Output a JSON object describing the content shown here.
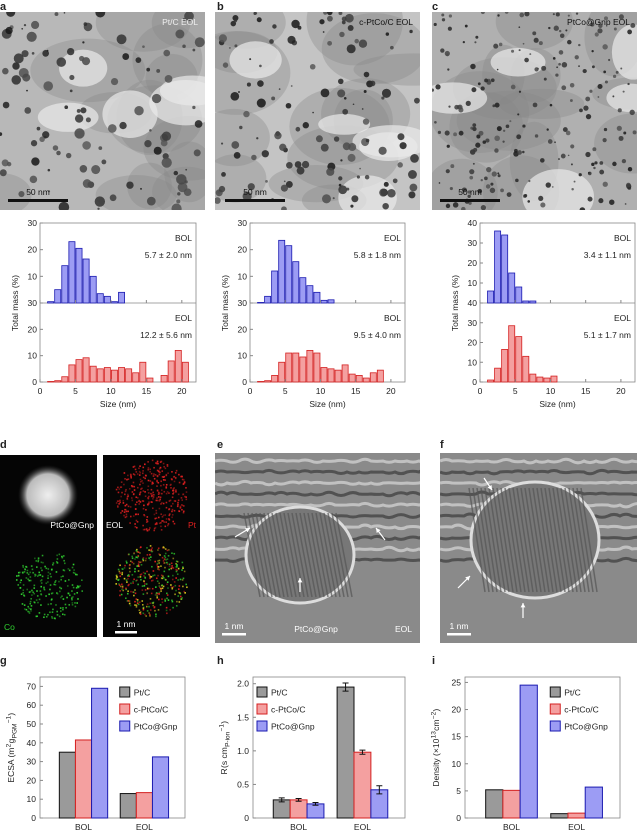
{
  "panels": {
    "a": {
      "letter": "a",
      "image_label": "Pt/C EOL",
      "scale_bar": "50 nm"
    },
    "b": {
      "letter": "b",
      "image_label": "c-PtCo/C EOL",
      "scale_bar": "50 nm"
    },
    "c": {
      "letter": "c",
      "image_label": "PtCo@Gnp EOL",
      "scale_bar": "50 nm"
    },
    "d": {
      "letter": "d",
      "label_haadf": "PtCo@Gnp",
      "label_eol": "EOL",
      "label_pt": "Pt",
      "label_co": "Co",
      "scale_bar": "1 nm",
      "pt_color": "#e02020",
      "co_color": "#30d030"
    },
    "e": {
      "letter": "e",
      "label_sample": "PtCo@Gnp",
      "label_eol": "EOL",
      "scale_bar": "1 nm"
    },
    "f": {
      "letter": "f",
      "scale_bar": "1 nm"
    },
    "g": {
      "letter": "g"
    },
    "h": {
      "letter": "h"
    },
    "i": {
      "letter": "i"
    }
  },
  "colors": {
    "blue_fill": "#9c9cf4",
    "blue_edge": "#1a1ab0",
    "red_fill": "#f4a0a0",
    "red_edge": "#d42020",
    "gray_fill": "#9a9a9a",
    "gray_edge": "#111111"
  },
  "chart_data": [
    {
      "type": "bar",
      "panel": "a",
      "xlabel": "Size (nm)",
      "ylabel": "Total mass (%)",
      "xlim": [
        0,
        22
      ],
      "xticks": [
        0,
        5,
        10,
        15,
        20
      ],
      "ylim": [
        0,
        30
      ],
      "yticks": [
        0,
        10,
        20,
        30
      ],
      "bin_width_nm": 1,
      "series": [
        {
          "name": "BOL",
          "annotation": "5.7 ± 2.0 nm",
          "bin_start": [
            1,
            2,
            3,
            4,
            5,
            6,
            7,
            8,
            9,
            10,
            11
          ],
          "values": [
            0.5,
            5,
            14,
            23,
            20.5,
            16.5,
            10,
            3.5,
            2.5,
            0.5,
            4
          ]
        },
        {
          "name": "EOL",
          "annotation": "12.2 ± 5.6 nm",
          "bin_start": [
            1,
            2,
            3,
            4,
            5,
            6,
            7,
            8,
            9,
            10,
            11,
            12,
            13,
            14,
            15,
            16,
            17,
            18,
            19,
            20
          ],
          "values": [
            0.2,
            0.5,
            2,
            6.5,
            8.5,
            9.2,
            6,
            5,
            5.5,
            4.5,
            5.5,
            5,
            3.5,
            7.5,
            1.5,
            0,
            2.5,
            8,
            12,
            7.5
          ]
        }
      ]
    },
    {
      "type": "bar",
      "panel": "b",
      "xlabel": "Size (nm)",
      "ylabel": "Total mass (%)",
      "xlim": [
        0,
        22
      ],
      "xticks": [
        0,
        5,
        10,
        15,
        20
      ],
      "ylim": [
        0,
        30
      ],
      "yticks": [
        0,
        10,
        20,
        30
      ],
      "bin_width_nm": 1,
      "series": [
        {
          "name": "EOL",
          "annotation": "5.8 ± 1.8 nm",
          "bin_start": [
            1,
            2,
            3,
            4,
            5,
            6,
            7,
            8,
            9,
            10,
            11
          ],
          "values": [
            0.2,
            2.5,
            12,
            23.5,
            21.5,
            15.5,
            9.5,
            6.5,
            4,
            1,
            1.2
          ]
        },
        {
          "name": "BOL",
          "annotation": "9.5 ± 4.0 nm",
          "bin_start": [
            1,
            2,
            3,
            4,
            5,
            6,
            7,
            8,
            9,
            10,
            11,
            12,
            13,
            14,
            15,
            16,
            17,
            18
          ],
          "values": [
            0.2,
            0.5,
            2.5,
            7.5,
            11,
            11,
            9.5,
            12,
            11,
            5.5,
            5,
            4.5,
            6.5,
            3,
            2.5,
            1.5,
            3.5,
            4.5
          ]
        }
      ]
    },
    {
      "type": "bar",
      "panel": "c",
      "xlabel": "Size (nm)",
      "ylabel": "Total mass (%)",
      "xlim": [
        0,
        22
      ],
      "xticks": [
        0,
        5,
        10,
        15,
        20
      ],
      "ylim": [
        0,
        40
      ],
      "yticks": [
        0,
        10,
        20,
        30,
        40
      ],
      "bin_width_nm": 1,
      "series": [
        {
          "name": "BOL",
          "annotation": "3.4 ± 1.1 nm",
          "bin_start": [
            1,
            2,
            3,
            4,
            5,
            6,
            7
          ],
          "values": [
            6,
            36,
            34,
            15,
            8,
            1,
            1
          ]
        },
        {
          "name": "EOL",
          "annotation": "5.1 ± 1.7 nm",
          "bin_start": [
            1,
            2,
            3,
            4,
            5,
            6,
            7,
            8,
            9,
            10
          ],
          "values": [
            1,
            7,
            16.5,
            28.5,
            23,
            13,
            4,
            2.5,
            2,
            3
          ]
        }
      ]
    },
    {
      "type": "bar",
      "panel": "g",
      "ylabel": {
        "main": "ECSA (m",
        "sup1": "2",
        "mid": " g",
        "sub": "PGM",
        "sup2": "−1",
        "end": ")"
      },
      "categories": [
        "BOL",
        "EOL"
      ],
      "ylim": [
        0,
        75
      ],
      "yticks": [
        0,
        10,
        20,
        30,
        40,
        50,
        60,
        70
      ],
      "legend": "top-right",
      "series": [
        {
          "name": "Pt/C",
          "values": [
            35,
            13
          ]
        },
        {
          "name": "c-PtCo/C",
          "values": [
            41.5,
            13.5
          ]
        },
        {
          "name": "PtCo@Gnp",
          "values": [
            69,
            32.5
          ]
        }
      ]
    },
    {
      "type": "bar",
      "panel": "h",
      "ylabel": {
        "main": "R",
        "sub": "P-ion",
        "mid": " (s cm",
        "sup2": "−1",
        "end": ")"
      },
      "categories": [
        "BOL",
        "EOL"
      ],
      "ylim": [
        0,
        2.1
      ],
      "yticks": [
        0,
        0.5,
        1.0,
        1.5,
        2.0
      ],
      "yticklabels": [
        "0",
        "0.5",
        "1.0",
        "1.5",
        "2.0"
      ],
      "legend": "top-left",
      "series": [
        {
          "name": "Pt/C",
          "values": [
            0.27,
            1.95
          ],
          "errors": [
            0.03,
            0.06
          ]
        },
        {
          "name": "c-PtCo/C",
          "values": [
            0.27,
            0.98
          ],
          "errors": [
            0.02,
            0.03
          ]
        },
        {
          "name": "PtCo@Gnp",
          "values": [
            0.21,
            0.42
          ],
          "errors": [
            0.02,
            0.06
          ]
        }
      ]
    },
    {
      "type": "bar",
      "panel": "i",
      "ylabel": {
        "main": "Density (×10",
        "sup1": "13",
        "mid": " cm",
        "sup2": "−2",
        "end": ")"
      },
      "categories": [
        "BOL",
        "EOL"
      ],
      "ylim": [
        0,
        26
      ],
      "yticks": [
        0,
        5,
        10,
        15,
        20,
        25
      ],
      "legend": "top-right",
      "series": [
        {
          "name": "Pt/C",
          "values": [
            5.2,
            0.8
          ]
        },
        {
          "name": "c-PtCo/C",
          "values": [
            5.1,
            0.9
          ]
        },
        {
          "name": "PtCo@Gnp",
          "values": [
            24.5,
            5.7
          ]
        }
      ]
    }
  ]
}
